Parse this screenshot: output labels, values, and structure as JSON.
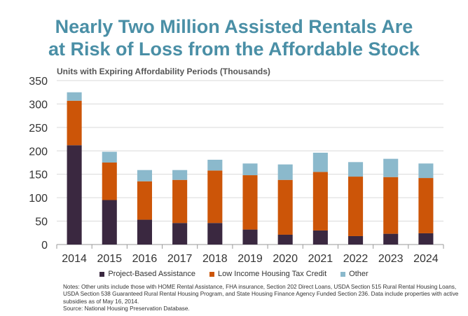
{
  "title_line1": "Nearly Two Million Assisted Rentals Are",
  "title_line2": "at Risk of Loss from the Affordable Stock",
  "subtitle": "Units with Expiring Affordability Periods (Thousands)",
  "colors": {
    "title": "#4a8fa6",
    "project_based": "#3a2840",
    "lihtc": "#cc5508",
    "other": "#8bb9cc"
  },
  "legend": [
    {
      "label": "Project-Based Assistance",
      "color": "#3a2840"
    },
    {
      "label": "Low Income Housing Tax Credit",
      "color": "#cc5508"
    },
    {
      "label": "Other",
      "color": "#8bb9cc"
    }
  ],
  "notes": {
    "line1": "Notes: Other units include those with HOME Rental Assistance, FHA insurance, Section 202 Direct Loans, USDA Section 515 Rural Rental Housing Loans, USDA Section 538 Guaranteed  Rural Rental Housing Program, and State Housing Finance Agency Funded Section 236. Data include properties with active subsidies as of May 16, 2014.",
    "line2": "Source: National Housing Preservation Database."
  },
  "chart_data": {
    "type": "bar",
    "stacked": true,
    "categories": [
      "2014",
      "2015",
      "2016",
      "2017",
      "2018",
      "2019",
      "2020",
      "2021",
      "2022",
      "2023",
      "2024"
    ],
    "series": [
      {
        "name": "Project-Based Assistance",
        "color": "#3a2840",
        "values": [
          212,
          95,
          53,
          46,
          46,
          32,
          21,
          30,
          18,
          23,
          24
        ]
      },
      {
        "name": "Low Income Housing Tax Credit",
        "color": "#cc5508",
        "values": [
          95,
          80,
          82,
          92,
          112,
          116,
          117,
          125,
          127,
          121,
          118
        ]
      },
      {
        "name": "Other",
        "color": "#8bb9cc",
        "values": [
          18,
          23,
          24,
          21,
          23,
          25,
          33,
          41,
          31,
          39,
          31
        ]
      }
    ],
    "ylim": [
      0,
      350
    ],
    "yticks": [
      0,
      50,
      100,
      150,
      200,
      250,
      300,
      350
    ],
    "grid": true,
    "legend_position": "bottom"
  }
}
